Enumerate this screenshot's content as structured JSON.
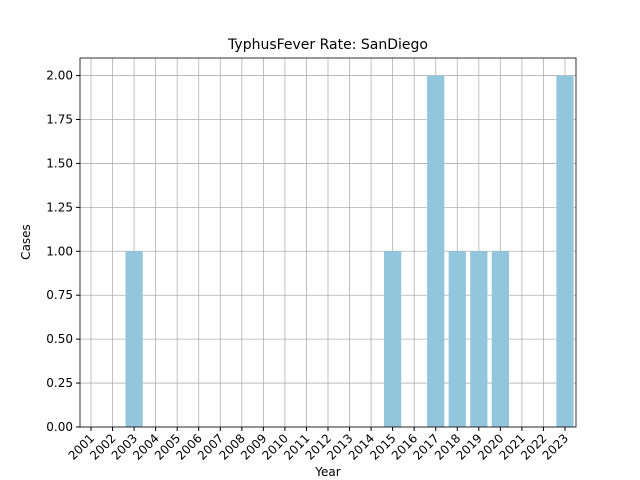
{
  "chart_data": {
    "type": "bar",
    "title": "TyphusFever Rate: SanDiego",
    "x_label": "Year",
    "y_label": "Cases",
    "categories": [
      "2001",
      "2002",
      "2003",
      "2004",
      "2005",
      "2006",
      "2007",
      "2008",
      "2009",
      "2010",
      "2011",
      "2012",
      "2013",
      "2014",
      "2015",
      "2016",
      "2017",
      "2018",
      "2019",
      "2020",
      "2021",
      "2022",
      "2023"
    ],
    "values": [
      0,
      0,
      1,
      0,
      0,
      0,
      0,
      0,
      0,
      0,
      0,
      0,
      0,
      0,
      1,
      0,
      2,
      1,
      1,
      1,
      0,
      0,
      2
    ],
    "color": "#92c6dc",
    "ylim": [
      0,
      2.1
    ],
    "yticks": [
      {
        "value": 0,
        "label": "0.00"
      },
      {
        "value": 0.25,
        "label": "0.25"
      },
      {
        "value": 0.5,
        "label": "0.50"
      },
      {
        "value": 0.75,
        "label": "0.75"
      },
      {
        "value": 1,
        "label": "1.00"
      },
      {
        "value": 1.25,
        "label": "1.25"
      },
      {
        "value": 1.5,
        "label": "1.50"
      },
      {
        "value": 1.75,
        "label": "1.75"
      },
      {
        "value": 2,
        "label": "2.00"
      }
    ],
    "grid": true
  }
}
